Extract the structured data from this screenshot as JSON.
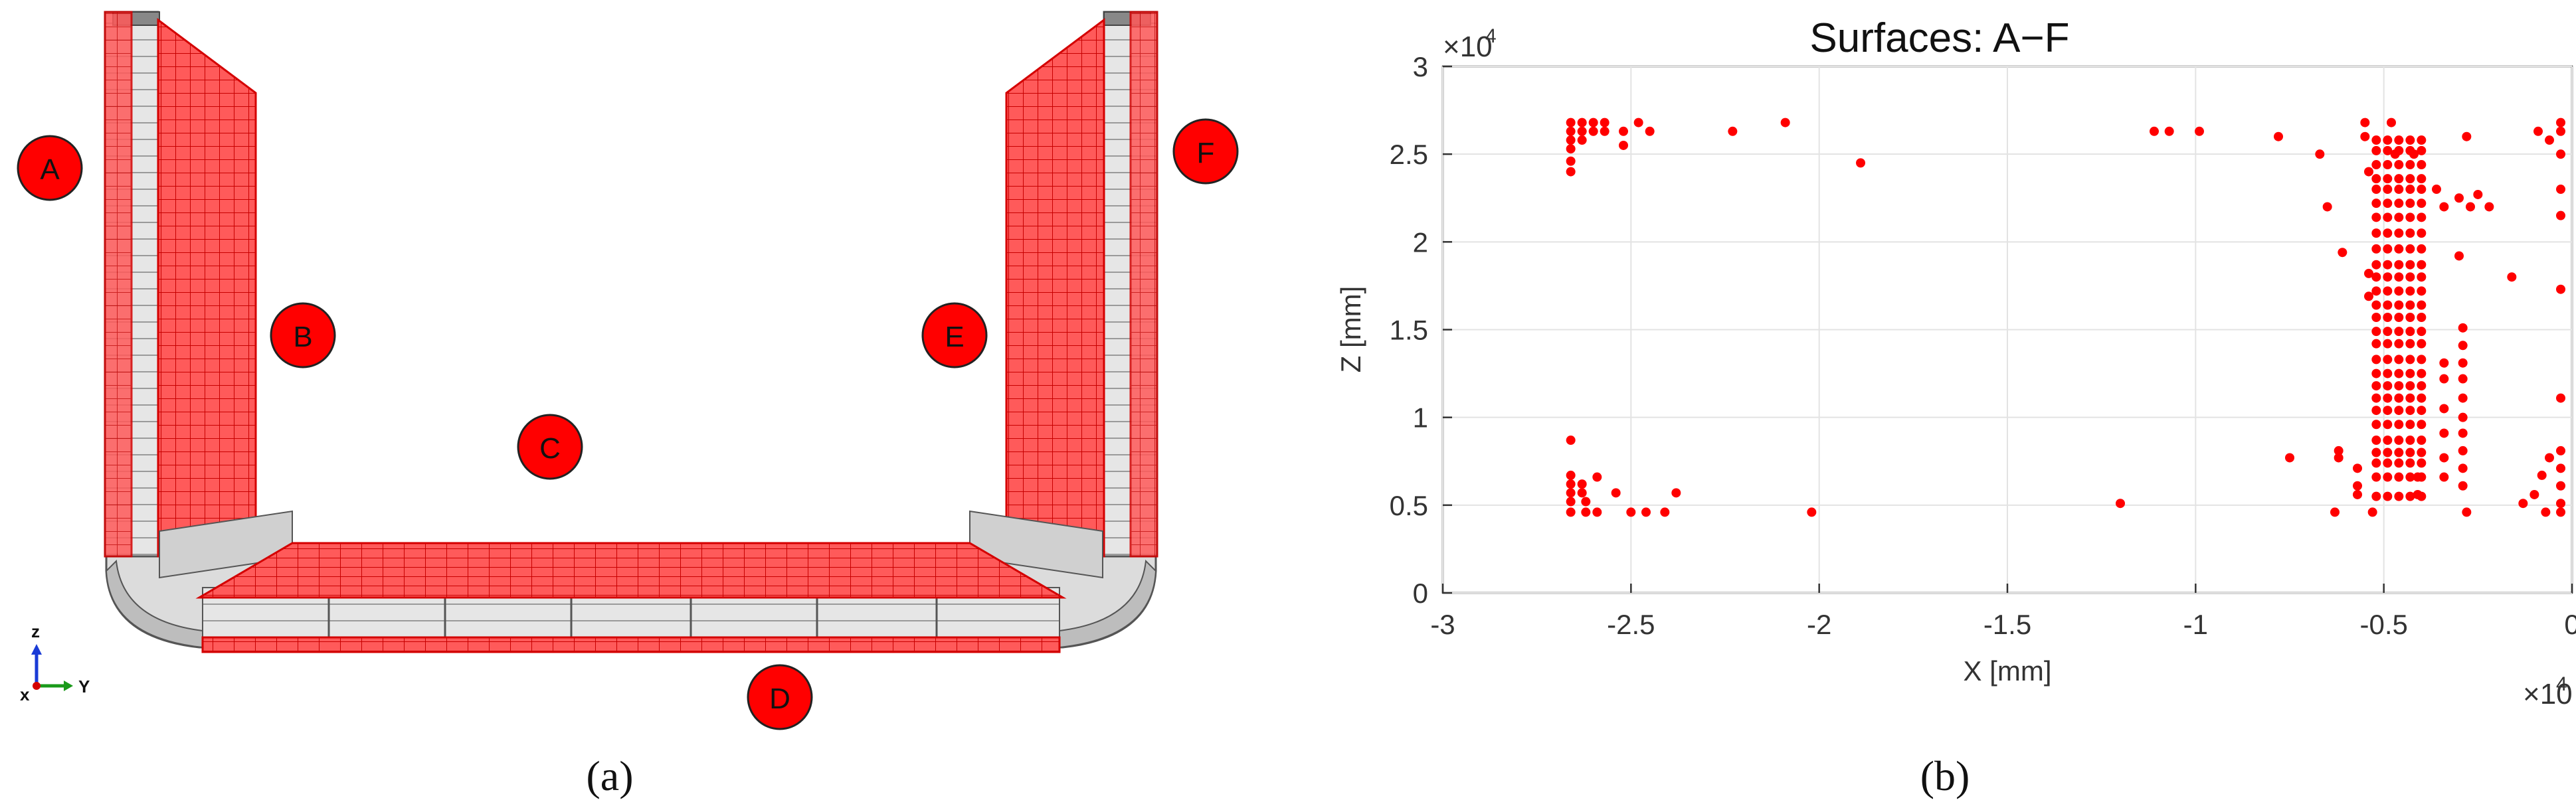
{
  "panel_a": {
    "caption": "(a)",
    "surface_labels": [
      "A",
      "B",
      "C",
      "D",
      "E",
      "F"
    ],
    "axes_triad": {
      "z": "z",
      "x": "x",
      "y": "Y"
    },
    "colors": {
      "mesh_face": "#ff4d4d",
      "mesh_line": "#d40000",
      "steel": "#e2e2e2",
      "steel_dark": "#8a8a8a",
      "label_fill": "#ff0000"
    }
  },
  "panel_b": {
    "caption": "(b)"
  },
  "chart_data": {
    "type": "scatter",
    "title": "Surfaces: A−F",
    "xlabel": "X [mm]",
    "ylabel": "Z [mm]",
    "x_exponent_label": "×10",
    "x_exponent_power": "4",
    "y_exponent_label": "×10",
    "y_exponent_power": "4",
    "xlim": [
      -3,
      0
    ],
    "ylim": [
      0,
      3
    ],
    "xticks": [
      -3,
      -2.5,
      -2,
      -1.5,
      -1,
      -0.5,
      0
    ],
    "xtick_labels": [
      "-3",
      "-2.5",
      "-2",
      "-1.5",
      "-1",
      "-0.5",
      "0"
    ],
    "yticks": [
      0,
      0.5,
      1,
      1.5,
      2,
      2.5,
      3
    ],
    "ytick_labels": [
      "0",
      "0.5",
      "1",
      "1.5",
      "2",
      "2.5",
      "3"
    ],
    "grid": true,
    "marker_color": "#ff0000",
    "series": [
      {
        "points": [
          [
            -2.66,
            2.68
          ],
          [
            -2.66,
            2.63
          ],
          [
            -2.66,
            2.58
          ],
          [
            -2.66,
            2.53
          ],
          [
            -2.66,
            2.46
          ],
          [
            -2.66,
            2.4
          ],
          [
            -2.63,
            2.68
          ],
          [
            -2.63,
            2.63
          ],
          [
            -2.63,
            2.58
          ],
          [
            -2.6,
            2.68
          ],
          [
            -2.6,
            2.63
          ],
          [
            -2.57,
            2.68
          ],
          [
            -2.57,
            2.63
          ],
          [
            -2.52,
            2.63
          ],
          [
            -2.52,
            2.55
          ],
          [
            -2.48,
            2.68
          ],
          [
            -2.45,
            2.63
          ],
          [
            -2.23,
            2.63
          ],
          [
            -2.09,
            2.68
          ],
          [
            -1.89,
            2.45
          ],
          [
            -1.11,
            2.63
          ],
          [
            -1.07,
            2.63
          ],
          [
            -0.99,
            2.63
          ],
          [
            -0.78,
            2.6
          ],
          [
            -2.66,
            0.87
          ],
          [
            -2.66,
            0.67
          ],
          [
            -2.66,
            0.62
          ],
          [
            -2.66,
            0.57
          ],
          [
            -2.66,
            0.52
          ],
          [
            -2.66,
            0.46
          ],
          [
            -2.63,
            0.62
          ],
          [
            -2.63,
            0.57
          ],
          [
            -2.62,
            0.52
          ],
          [
            -2.62,
            0.46
          ],
          [
            -2.59,
            0.66
          ],
          [
            -2.59,
            0.46
          ],
          [
            -2.54,
            0.57
          ],
          [
            -2.5,
            0.46
          ],
          [
            -2.46,
            0.46
          ],
          [
            -2.41,
            0.46
          ],
          [
            -2.38,
            0.57
          ],
          [
            -2.02,
            0.46
          ],
          [
            -1.2,
            0.51
          ],
          [
            -0.75,
            0.77
          ],
          [
            -0.63,
            0.46
          ],
          [
            -0.53,
            0.46
          ],
          [
            -0.28,
            0.46
          ],
          [
            -0.67,
            2.5
          ],
          [
            -0.65,
            2.2
          ],
          [
            -0.61,
            1.94
          ],
          [
            -0.55,
            2.68
          ],
          [
            -0.55,
            2.6
          ],
          [
            -0.54,
            2.4
          ],
          [
            -0.54,
            1.82
          ],
          [
            -0.54,
            1.69
          ],
          [
            -0.48,
            2.68
          ],
          [
            -0.47,
            2.5
          ],
          [
            -0.42,
            2.5
          ],
          [
            -0.36,
            2.3
          ],
          [
            -0.34,
            2.2
          ],
          [
            -0.3,
            2.25
          ],
          [
            -0.3,
            1.92
          ],
          [
            -0.28,
            2.6
          ],
          [
            -0.27,
            2.2
          ],
          [
            -0.25,
            2.27
          ],
          [
            -0.22,
            2.2
          ],
          [
            -0.16,
            1.8
          ],
          [
            -0.09,
            2.63
          ],
          [
            -0.06,
            2.58
          ],
          [
            -0.03,
            2.68
          ],
          [
            -0.03,
            2.63
          ],
          [
            -0.03,
            2.5
          ],
          [
            -0.03,
            2.3
          ],
          [
            -0.03,
            2.15
          ],
          [
            -0.03,
            1.73
          ],
          [
            -0.03,
            1.11
          ],
          [
            -0.03,
            0.81
          ],
          [
            -0.03,
            0.71
          ],
          [
            -0.03,
            0.61
          ],
          [
            -0.03,
            0.51
          ],
          [
            -0.03,
            0.46
          ],
          [
            -0.06,
            0.77
          ],
          [
            -0.08,
            0.67
          ],
          [
            -0.1,
            0.56
          ],
          [
            -0.13,
            0.51
          ],
          [
            -0.07,
            0.46
          ],
          [
            -0.62,
            0.81
          ],
          [
            -0.62,
            0.77
          ],
          [
            -0.57,
            0.71
          ],
          [
            -0.57,
            0.61
          ],
          [
            -0.57,
            0.56
          ],
          [
            -0.41,
            0.66
          ],
          [
            -0.41,
            0.56
          ],
          [
            -0.34,
            1.31
          ],
          [
            -0.34,
            1.22
          ],
          [
            -0.34,
            1.05
          ],
          [
            -0.34,
            0.91
          ],
          [
            -0.34,
            0.77
          ],
          [
            -0.34,
            0.66
          ],
          [
            -0.29,
            1.51
          ],
          [
            -0.29,
            1.41
          ],
          [
            -0.29,
            1.31
          ],
          [
            -0.29,
            1.22
          ],
          [
            -0.29,
            1.11
          ],
          [
            -0.29,
            1.0
          ],
          [
            -0.29,
            0.91
          ],
          [
            -0.29,
            0.81
          ],
          [
            -0.29,
            0.71
          ],
          [
            -0.29,
            0.61
          ]
        ],
        "column_clusters": [
          {
            "x": [
              -0.52,
              -0.49,
              -0.46,
              -0.43,
              -0.4
            ],
            "z": [
              0.55,
              0.66,
              0.74,
              0.8,
              0.87,
              0.96,
              1.04,
              1.11,
              1.18,
              1.25,
              1.33,
              1.42,
              1.49,
              1.57,
              1.64,
              1.72,
              1.8,
              1.87,
              1.96,
              2.05,
              2.14,
              2.22,
              2.3,
              2.36,
              2.44,
              2.52,
              2.58
            ]
          }
        ]
      }
    ]
  }
}
